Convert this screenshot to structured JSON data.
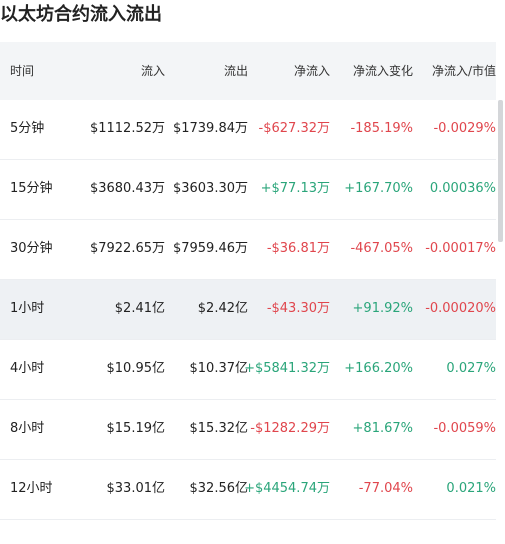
{
  "title": "以太坊合约流入流出",
  "table": {
    "header": [
      "时间",
      "流入",
      "流出",
      "净流入",
      "净流入变化",
      "净流入/市值"
    ],
    "rows": [
      [
        "5分钟",
        "$1112.52万",
        "$1739.84万",
        "-$627.32万",
        "-185.19%",
        "-0.0029%"
      ],
      [
        "15分钟",
        "$3680.43万",
        "$3603.30万",
        "+$77.13万",
        "+167.70%",
        "0.00036%"
      ],
      [
        "30分钟",
        "$7922.65万",
        "$7959.46万",
        "-$36.81万",
        "-467.05%",
        "-0.00017%"
      ],
      [
        "1小时",
        "$2.41亿",
        "$2.42亿",
        "-$43.30万",
        "+91.92%",
        "-0.00020%"
      ],
      [
        "4小时",
        "$10.95亿",
        "$10.37亿",
        "+$5841.32万",
        "+166.20%",
        "0.027%"
      ],
      [
        "8小时",
        "$15.19亿",
        "$15.32亿",
        "-$1282.29万",
        "+81.67%",
        "-0.0059%"
      ],
      [
        "12小时",
        "$33.01亿",
        "$32.56亿",
        "+$4454.74万",
        "-77.04%",
        "0.021%"
      ]
    ]
  }
}
